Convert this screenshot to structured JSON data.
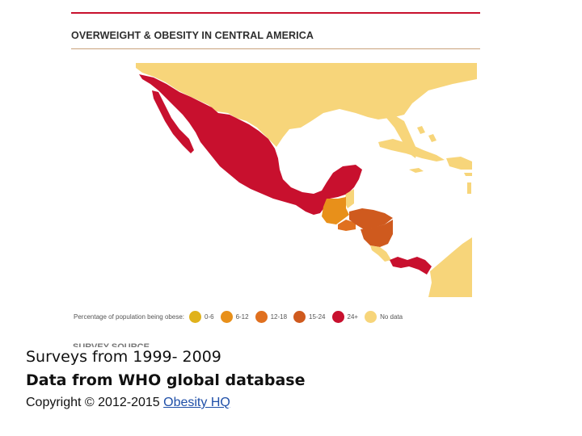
{
  "figure": {
    "title": "OVERWEIGHT & OBESITY IN CENTRAL AMERICA",
    "partial_text": "SURVEY SOURCE",
    "colors": {
      "rule": "#c8102e",
      "land_no_data": "#f7d57a",
      "sea": "#ffffff"
    }
  },
  "legend": {
    "label": "Percentage of population being obese:",
    "items": [
      {
        "label": "0-6",
        "color": "#e0b21c"
      },
      {
        "label": "6-12",
        "color": "#e8901a"
      },
      {
        "label": "12-18",
        "color": "#e0701f"
      },
      {
        "label": "15-24",
        "color": "#cf5a1e"
      },
      {
        "label": "24+",
        "color": "#c8102e"
      },
      {
        "label": "No data",
        "color": "#f7d57a"
      }
    ]
  },
  "regions": [
    {
      "name": "Mexico",
      "category": "24+"
    },
    {
      "name": "Belize",
      "category": "No data"
    },
    {
      "name": "Guatemala",
      "category": "6-12"
    },
    {
      "name": "El Salvador",
      "category": "12-18"
    },
    {
      "name": "Honduras",
      "category": "15-24"
    },
    {
      "name": "Nicaragua",
      "category": "15-24"
    },
    {
      "name": "Costa Rica",
      "category": "No data"
    },
    {
      "name": "Panama",
      "category": "24+"
    },
    {
      "name": "United States",
      "category": "No data"
    },
    {
      "name": "Cuba",
      "category": "No data"
    },
    {
      "name": "Colombia",
      "category": "No data"
    }
  ],
  "captions": {
    "line1": "Surveys from 1999- 2009",
    "line2": "Data from WHO global database",
    "copyright_prefix": "Copyright © 2012-2015 ",
    "copyright_link": "Obesity HQ"
  }
}
